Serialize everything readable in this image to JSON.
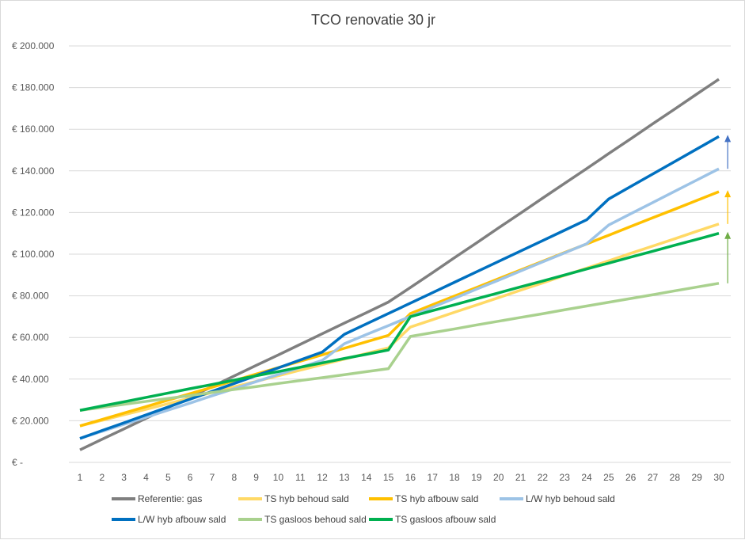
{
  "chart_data": {
    "type": "line",
    "title": "TCO renovatie 30 jr",
    "xlabel": "",
    "ylabel": "",
    "x": [
      1,
      2,
      3,
      4,
      5,
      6,
      7,
      8,
      9,
      10,
      11,
      12,
      13,
      14,
      15,
      16,
      17,
      18,
      19,
      20,
      21,
      22,
      23,
      24,
      25,
      26,
      27,
      28,
      29,
      30
    ],
    "ylim": [
      0,
      200000
    ],
    "yticks": [
      0,
      20000,
      40000,
      60000,
      80000,
      100000,
      120000,
      140000,
      160000,
      180000,
      200000
    ],
    "ytick_labels": [
      "€ -",
      "€ 20.000",
      "€ 40.000",
      "€ 60.000",
      "€ 80.000",
      "€ 100.000",
      "€ 120.000",
      "€ 140.000",
      "€ 160.000",
      "€ 180.000",
      "€ 200.000"
    ],
    "grid": true,
    "legend_position": "bottom",
    "series": [
      {
        "name": "Referentie: gas",
        "color": "#7f7f7f",
        "values": [
          6000,
          11100,
          16100,
          21200,
          26300,
          31400,
          36400,
          41500,
          46600,
          51600,
          56700,
          61800,
          66900,
          71900,
          77000,
          84000,
          91100,
          98300,
          105400,
          112600,
          119700,
          126900,
          134000,
          141100,
          148300,
          155400,
          162600,
          169700,
          176900,
          184000
        ]
      },
      {
        "name": "TS hyb behoud sald",
        "color": "#ffd966",
        "values": [
          17500,
          20200,
          22900,
          25500,
          28200,
          30900,
          33600,
          36300,
          38900,
          41600,
          44300,
          47000,
          49600,
          52300,
          55000,
          65000,
          68500,
          72100,
          75600,
          79100,
          82700,
          86200,
          89800,
          93300,
          96800,
          100400,
          103900,
          107400,
          111000,
          114500
        ]
      },
      {
        "name": "TS hyb afbouw sald",
        "color": "#ffc000",
        "values": [
          17500,
          20600,
          23700,
          26800,
          29900,
          33000,
          36100,
          39300,
          42400,
          45500,
          48600,
          51700,
          54800,
          57900,
          61000,
          71500,
          75700,
          79900,
          84000,
          88200,
          92400,
          96600,
          100800,
          104900,
          109100,
          113300,
          117500,
          121600,
          125800,
          130000
        ]
      },
      {
        "name": "L/W hyb behoud sald",
        "color": "#9dc3e6",
        "values": [
          11500,
          14900,
          18300,
          21700,
          25100,
          28500,
          32000,
          35400,
          38800,
          42200,
          45600,
          49000,
          57000,
          61400,
          65700,
          70100,
          74500,
          78800,
          83200,
          87500,
          91900,
          96300,
          100600,
          105000,
          114000,
          119400,
          124800,
          130200,
          135600,
          141000
        ]
      },
      {
        "name": "L/W hyb afbouw sald",
        "color": "#0070c0",
        "values": [
          11500,
          15300,
          19000,
          22800,
          26600,
          30400,
          34100,
          37900,
          41700,
          45400,
          49200,
          53000,
          61500,
          66500,
          71500,
          76500,
          81500,
          86500,
          91500,
          96500,
          101500,
          106500,
          111500,
          116500,
          126500,
          132500,
          138500,
          144500,
          150500,
          156500
        ]
      },
      {
        "name": "TS gasloos behoud sald",
        "color": "#a9d18e",
        "values": [
          25000,
          26400,
          27900,
          29300,
          30700,
          32100,
          33600,
          35000,
          36400,
          37900,
          39300,
          40700,
          42100,
          43600,
          45000,
          60500,
          62300,
          64100,
          66000,
          67800,
          69600,
          71400,
          73300,
          75100,
          76900,
          78700,
          80500,
          82400,
          84200,
          86000
        ]
      },
      {
        "name": "TS gasloos afbouw sald",
        "color": "#00b050",
        "values": [
          25000,
          27100,
          29100,
          31200,
          33300,
          35400,
          37400,
          39500,
          41600,
          43600,
          45700,
          47800,
          49900,
          51900,
          54000,
          70000,
          72900,
          75700,
          78600,
          81400,
          84300,
          87100,
          90000,
          92900,
          95700,
          98600,
          101400,
          104300,
          107100,
          110000
        ]
      }
    ],
    "annotations": [
      {
        "type": "arrow",
        "x": 30.4,
        "from": 141000,
        "to": 156500,
        "color": "#4472c4"
      },
      {
        "type": "arrow",
        "x": 30.4,
        "from": 114500,
        "to": 130000,
        "color": "#ffc000"
      },
      {
        "type": "arrow",
        "x": 30.4,
        "from": 86000,
        "to": 110000,
        "color": "#70ad47"
      }
    ]
  }
}
